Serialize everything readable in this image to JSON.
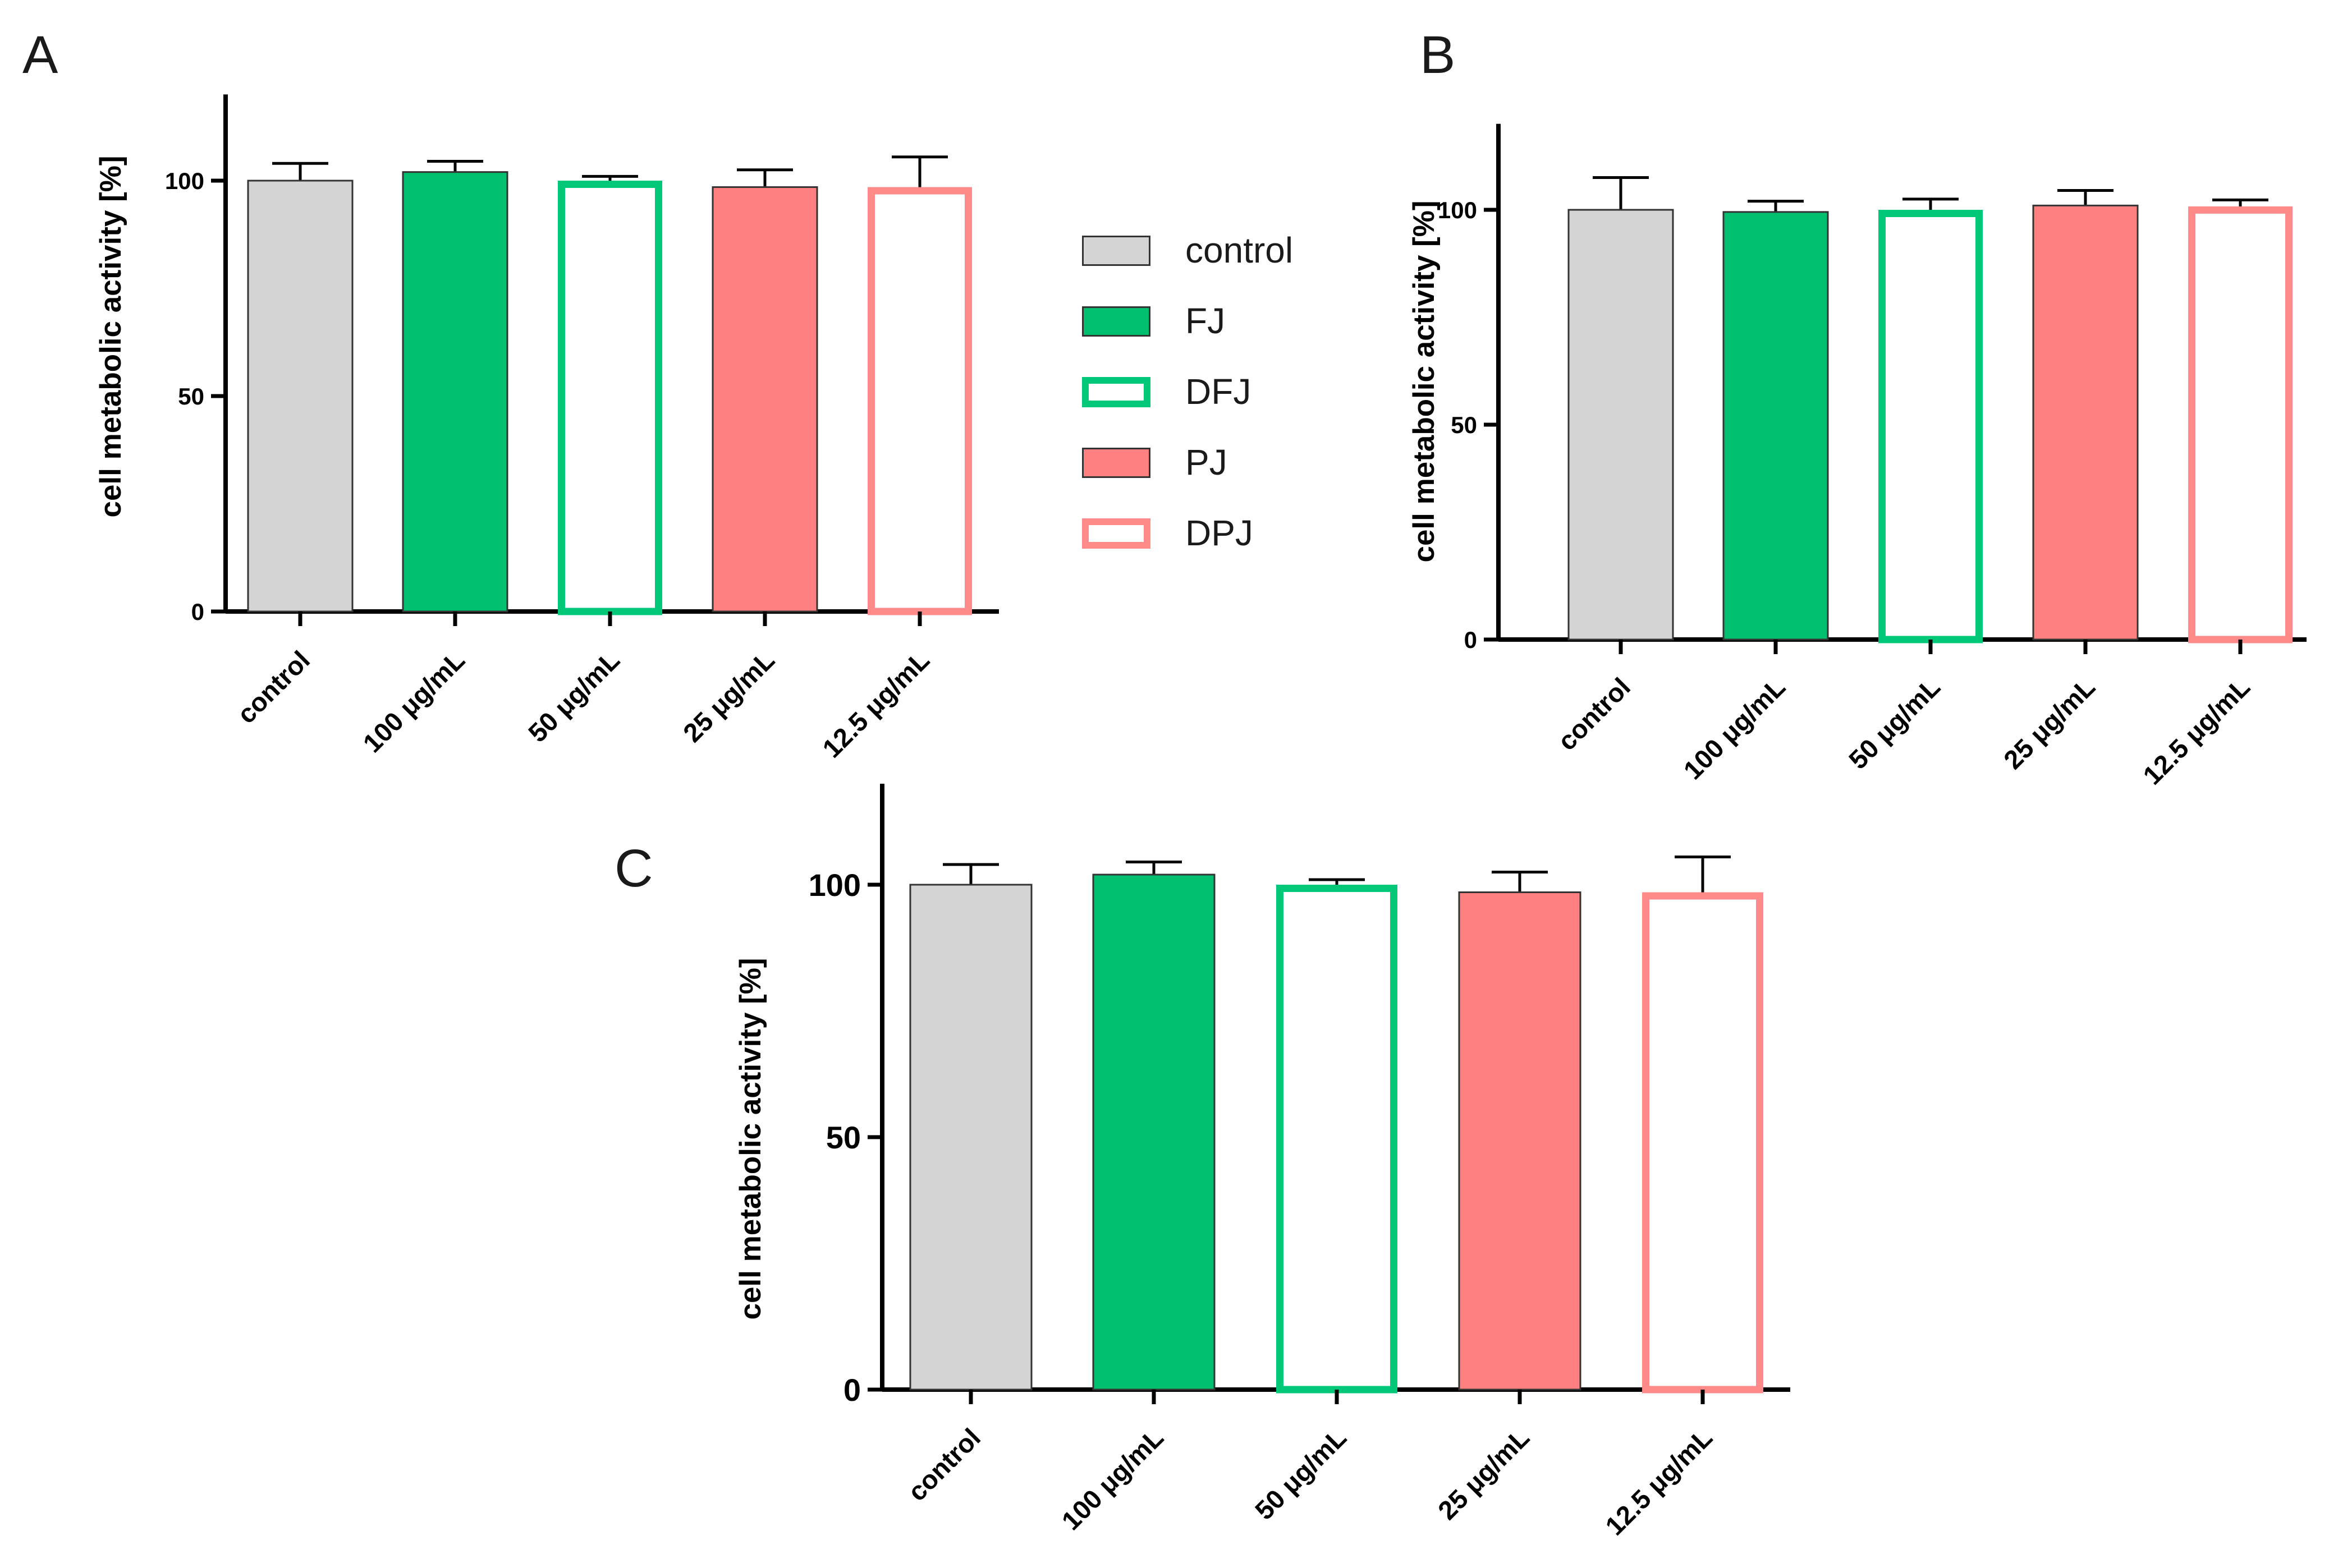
{
  "colors": {
    "control": "#d4d4d4",
    "FJ": "#00c070",
    "DFJ": "#00c878",
    "PJ": "#ff8080",
    "DPJ": "#ff8a8a",
    "axis": "#000000",
    "edge": "#333333"
  },
  "legend": {
    "entries": [
      {
        "label": "control",
        "fill": "#d4d4d4",
        "stroke": "#333333",
        "hollow": false
      },
      {
        "label": "FJ",
        "fill": "#00c070",
        "stroke": "#333333",
        "hollow": false
      },
      {
        "label": "DFJ",
        "fill": "#ffffff",
        "stroke": "#00c878",
        "hollow": true
      },
      {
        "label": "PJ",
        "fill": "#ff8080",
        "stroke": "#333333",
        "hollow": false
      },
      {
        "label": "DPJ",
        "fill": "#ffffff",
        "stroke": "#ff8a8a",
        "hollow": true
      }
    ]
  },
  "chart_data": [
    {
      "panel": "A",
      "type": "bar",
      "categories": [
        "control",
        "100 μg/mL",
        "50 μg/mL",
        "25 μg/mL",
        "12.5 μg/mL"
      ],
      "values": [
        100,
        102,
        100,
        98.5,
        98.5
      ],
      "errors": [
        4,
        2.5,
        1,
        4,
        7
      ],
      "ylabel": "cell metabolic activity [%]",
      "yticks": [
        0,
        50,
        100
      ],
      "ylim": [
        0,
        120
      ]
    },
    {
      "panel": "B",
      "type": "bar",
      "categories": [
        "control",
        "100 μg/mL",
        "50 μg/mL",
        "25 μg/mL",
        "12.5 μg/mL"
      ],
      "values": [
        100,
        99.5,
        100,
        101,
        100.8
      ],
      "errors": [
        7.5,
        2.5,
        2.5,
        3.5,
        1.5
      ],
      "ylabel": "cell metabolic activity [%]",
      "yticks": [
        0,
        50,
        100
      ],
      "ylim": [
        0,
        120
      ]
    },
    {
      "panel": "C",
      "type": "bar",
      "categories": [
        "control",
        "100 μg/mL",
        "50 μg/mL",
        "25 μg/mL",
        "12.5 μg/mL"
      ],
      "values": [
        100,
        102,
        100,
        98.5,
        98.5
      ],
      "errors": [
        4,
        2.5,
        1,
        4,
        7
      ],
      "ylabel": "cell metabolic activity [%]",
      "yticks": [
        0,
        50,
        100
      ],
      "ylim": [
        0,
        120
      ]
    }
  ]
}
